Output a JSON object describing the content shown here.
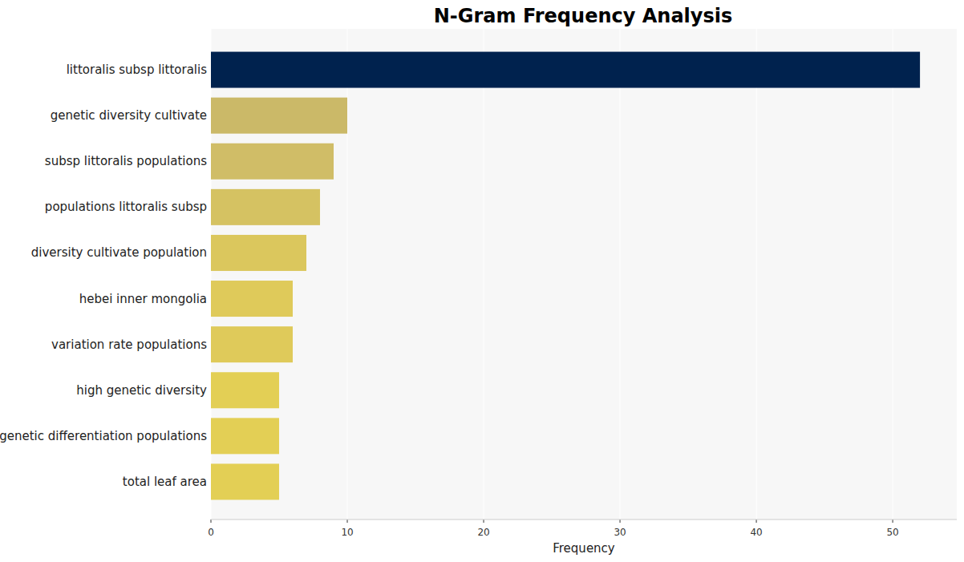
{
  "chart_data": {
    "type": "bar",
    "orientation": "horizontal",
    "title": "N-Gram Frequency Analysis",
    "x_label": "Frequency",
    "categories": [
      "littoralis subsp littoralis",
      "genetic diversity cultivate",
      "subsp littoralis populations",
      "populations littoralis subsp",
      "diversity cultivate population",
      "hebei inner mongolia",
      "variation rate populations",
      "high genetic diversity",
      "genetic differentiation populations",
      "total leaf area"
    ],
    "values": [
      52,
      10,
      9,
      8,
      7,
      6,
      6,
      5,
      5,
      5
    ],
    "colors": [
      "#00224e",
      "#cbb968",
      "#d0bd67",
      "#d5c262",
      "#dbc75d",
      "#dfca5a",
      "#dfca5a",
      "#e3cf55",
      "#e3cf55",
      "#e3cf55"
    ],
    "xlim": [
      0,
      54.7
    ],
    "xticks": [
      0,
      10,
      20,
      30,
      40,
      50
    ],
    "grid": true
  }
}
